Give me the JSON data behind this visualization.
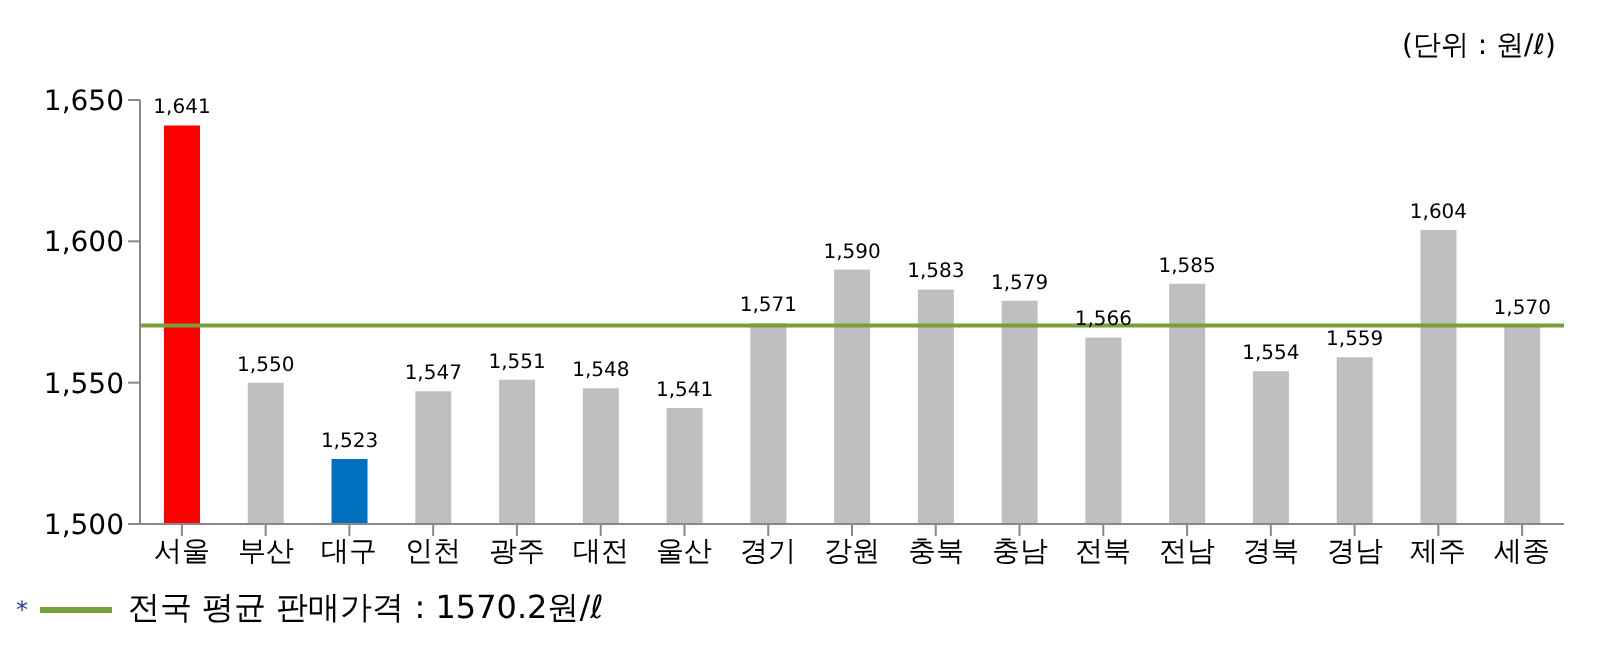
{
  "chart_data": {
    "type": "bar",
    "categories": [
      "서울",
      "부산",
      "대구",
      "인천",
      "광주",
      "대전",
      "울산",
      "경기",
      "강원",
      "충북",
      "충남",
      "전북",
      "전남",
      "경북",
      "경남",
      "제주",
      "세종"
    ],
    "values": [
      1641,
      1550,
      1523,
      1547,
      1551,
      1548,
      1541,
      1571,
      1590,
      1583,
      1579,
      1566,
      1585,
      1554,
      1559,
      1604,
      1570
    ],
    "colors": [
      "#ff0000",
      "#bfbfbf",
      "#0070c0",
      "#bfbfbf",
      "#bfbfbf",
      "#bfbfbf",
      "#bfbfbf",
      "#bfbfbf",
      "#bfbfbf",
      "#bfbfbf",
      "#bfbfbf",
      "#bfbfbf",
      "#bfbfbf",
      "#bfbfbf",
      "#bfbfbf",
      "#bfbfbf",
      "#bfbfbf"
    ],
    "value_labels": [
      "1,641",
      "1,550",
      "1,523",
      "1,547",
      "1,551",
      "1,548",
      "1,541",
      "1,571",
      "1,590",
      "1,583",
      "1,579",
      "1,566",
      "1,585",
      "1,554",
      "1,559",
      "1,604",
      "1,570"
    ],
    "ylim": [
      1500,
      1650
    ],
    "yticks": [
      {
        "value": 1500,
        "label": "1,500"
      },
      {
        "value": 1550,
        "label": "1,550"
      },
      {
        "value": 1600,
        "label": "1,600"
      },
      {
        "value": 1650,
        "label": "1,650"
      }
    ],
    "grid": false,
    "ref_lines": [
      {
        "axis": "y",
        "value": 1570.2,
        "label": "전국 평균 판매가격 : 1570.2원/ℓ",
        "color": "#77a03a"
      }
    ],
    "annotations": [
      "(단위 : 원/ℓ)",
      "*"
    ]
  }
}
